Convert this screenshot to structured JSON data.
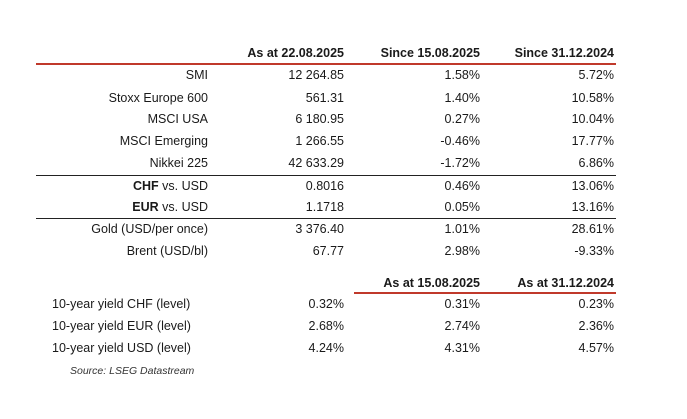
{
  "table1": {
    "headers": [
      "As at 22.08.2025",
      "Since 15.08.2025",
      "Since 31.12.2024"
    ],
    "rows": [
      {
        "label": "SMI",
        "v1": "12 264.85",
        "v2": "1.58%",
        "v3": "5.72%"
      },
      {
        "label": "Stoxx Europe 600",
        "v1": "561.31",
        "v2": "1.40%",
        "v3": "10.58%"
      },
      {
        "label": "MSCI USA",
        "v1": "6 180.95",
        "v2": "0.27%",
        "v3": "10.04%"
      },
      {
        "label": "MSCI Emerging",
        "v1": "1 266.55",
        "v2": "-0.46%",
        "v3": "17.77%"
      },
      {
        "label": "Nikkei 225",
        "v1": "42 633.29",
        "v2": "-1.72%",
        "v3": "6.86%"
      },
      {
        "label_bold": "CHF",
        "label_rest": " vs. USD",
        "v1": "0.8016",
        "v2": "0.46%",
        "v3": "13.06%"
      },
      {
        "label_bold": "EUR",
        "label_rest": " vs. USD",
        "v1": "1.1718",
        "v2": "0.05%",
        "v3": "13.16%"
      },
      {
        "label": "Gold (USD/per once)",
        "v1": "3 376.40",
        "v2": "1.01%",
        "v3": "28.61%"
      },
      {
        "label": "Brent (USD/bl)",
        "v1": "67.77",
        "v2": "2.98%",
        "v3": "-9.33%"
      }
    ]
  },
  "table2": {
    "headers": [
      "As at 15.08.2025",
      "As at 31.12.2024"
    ],
    "rows": [
      {
        "label": "10-year yield CHF (level)",
        "v1": "0.32%",
        "v2": "0.31%",
        "v3": "0.23%"
      },
      {
        "label": "10-year yield EUR (level)",
        "v1": "2.68%",
        "v2": "2.74%",
        "v3": "2.36%"
      },
      {
        "label": "10-year yield USD (level)",
        "v1": "4.24%",
        "v2": "4.31%",
        "v3": "4.57%"
      }
    ]
  },
  "source": "Source: LSEG Datastream",
  "colors": {
    "accent_rule": "#c0392b",
    "rule": "#222222"
  }
}
